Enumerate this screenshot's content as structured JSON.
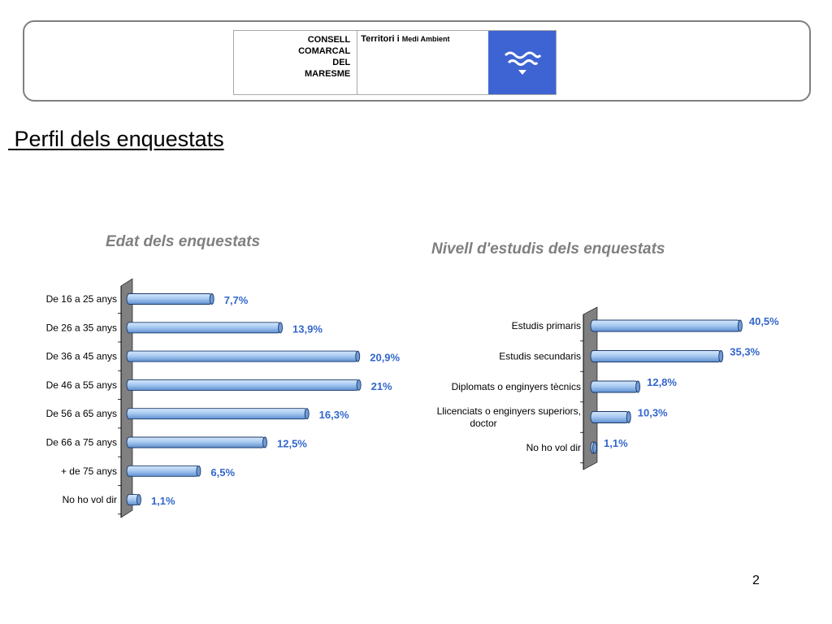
{
  "logo": {
    "name_lines": [
      "CONSELL",
      "COMARCAL",
      "DEL",
      "MARESME"
    ],
    "subtitle_main": "Territori i",
    "subtitle_small": "Medi Ambient",
    "emblem_color": "#3e63d2"
  },
  "page": {
    "title": " Perfil dels enquestats",
    "page_number": "2"
  },
  "colors": {
    "bar_fill": "#a9cbf2",
    "bar_edge": "#1b3a6b",
    "label_text": "#3366cc",
    "wall": "#808080"
  },
  "chart_data": [
    {
      "type": "bar",
      "orientation": "horizontal",
      "title": "Edat dels enquestats",
      "categories": [
        "De 16 a 25 anys",
        "De 26 a 35 anys",
        "De 36 a 45 anys",
        "De 46 a 55 anys",
        "De 56 a 65 anys",
        "De 66 a 75 anys",
        "+ de 75 anys",
        "No ho vol dir"
      ],
      "values": [
        7.7,
        13.9,
        20.9,
        21,
        16.3,
        12.5,
        6.5,
        1.1
      ],
      "value_labels": [
        "7,7%",
        "13,9%",
        "20,9%",
        "21%",
        "16,3%",
        "12,5%",
        "6,5%",
        "1,1%"
      ],
      "xlim": [
        0,
        21
      ],
      "legend": false,
      "grid": false
    },
    {
      "type": "bar",
      "orientation": "horizontal",
      "title": "Nivell d'estudis dels enquestats",
      "categories": [
        "Estudis primaris",
        "Estudis secundaris",
        "Diplomats o enginyers tècnics",
        "Llicenciats o enginyers superiors, doctor",
        "No ho vol dir"
      ],
      "category_lines": [
        [
          "Estudis primaris"
        ],
        [
          "Estudis secundaris"
        ],
        [
          "Diplomats o enginyers tècnics"
        ],
        [
          "Llicenciats o enginyers superiors,",
          "doctor"
        ],
        [
          "No ho vol dir"
        ]
      ],
      "values": [
        40.5,
        35.3,
        12.8,
        10.3,
        1.1
      ],
      "value_labels": [
        "40,5%",
        "35,3%",
        "12,8%",
        "10,3%",
        "1,1%"
      ],
      "xlim": [
        0,
        40.5
      ],
      "legend": false,
      "grid": false
    }
  ]
}
